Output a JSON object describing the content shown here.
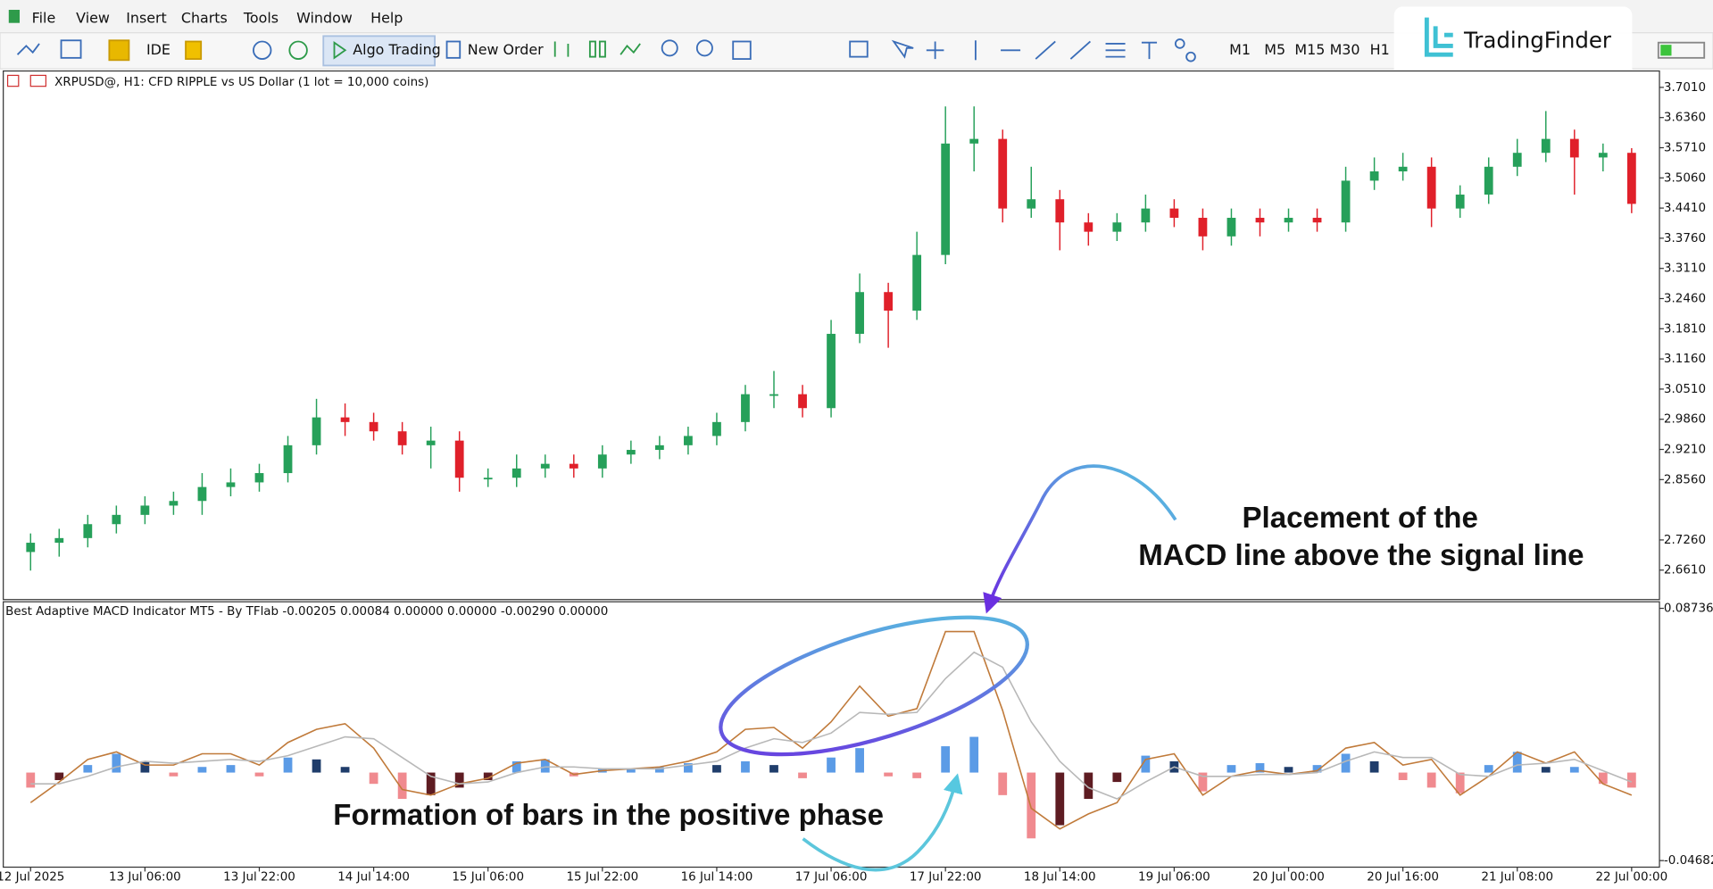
{
  "menu": [
    "File",
    "View",
    "Insert",
    "Charts",
    "Tools",
    "Window",
    "Help"
  ],
  "toolbar": {
    "ide": "IDE",
    "algo_trading": "Algo Trading",
    "new_order": "New Order",
    "timeframes": [
      "M1",
      "M5",
      "M15",
      "M30",
      "H1"
    ]
  },
  "logo": "TradingFinder",
  "annotations": [
    "Placement of the",
    "MACD line above the signal line",
    "Formation of bars in the positive phase"
  ],
  "chart_data": [
    {
      "type": "candlestick",
      "title": "XRPUSD@, H1:  CFD RIPPLE vs US Dollar (1 lot = 10,000 coins)",
      "up_color": "#26a05a",
      "down_color": "#e0202a",
      "open": [
        2.7,
        2.72,
        2.73,
        2.76,
        2.78,
        2.8,
        2.81,
        2.84,
        2.85,
        2.87,
        2.93,
        2.99,
        2.98,
        2.96,
        2.93,
        2.94,
        2.86,
        2.86,
        2.88,
        2.89,
        2.88,
        2.91,
        2.92,
        2.93,
        2.95,
        2.98,
        3.04,
        3.04,
        3.01,
        3.17,
        3.26,
        3.22,
        3.34,
        3.58,
        3.59,
        3.44,
        3.46,
        3.41,
        3.39,
        3.41,
        3.44,
        3.42,
        3.38,
        3.42,
        3.41,
        3.42,
        3.41,
        3.5,
        3.52,
        3.53,
        3.44,
        3.47,
        3.53,
        3.56,
        3.59,
        3.55,
        3.56
      ],
      "high": [
        2.74,
        2.75,
        2.78,
        2.8,
        2.82,
        2.83,
        2.87,
        2.88,
        2.89,
        2.95,
        3.03,
        3.02,
        3.0,
        2.98,
        2.97,
        2.96,
        2.88,
        2.91,
        2.91,
        2.91,
        2.93,
        2.94,
        2.95,
        2.97,
        3.0,
        3.06,
        3.09,
        3.06,
        3.2,
        3.3,
        3.28,
        3.39,
        3.66,
        3.66,
        3.61,
        3.53,
        3.48,
        3.43,
        3.43,
        3.47,
        3.46,
        3.44,
        3.44,
        3.44,
        3.44,
        3.44,
        3.53,
        3.55,
        3.56,
        3.55,
        3.49,
        3.55,
        3.59,
        3.65,
        3.61,
        3.58,
        3.57
      ],
      "low": [
        2.66,
        2.69,
        2.71,
        2.74,
        2.76,
        2.78,
        2.78,
        2.82,
        2.83,
        2.85,
        2.91,
        2.95,
        2.94,
        2.91,
        2.88,
        2.83,
        2.84,
        2.84,
        2.86,
        2.86,
        2.86,
        2.89,
        2.9,
        2.91,
        2.93,
        2.96,
        3.01,
        2.99,
        2.99,
        3.15,
        3.14,
        3.2,
        3.32,
        3.52,
        3.41,
        3.42,
        3.35,
        3.36,
        3.37,
        3.39,
        3.4,
        3.35,
        3.36,
        3.38,
        3.39,
        3.39,
        3.39,
        3.48,
        3.5,
        3.4,
        3.42,
        3.45,
        3.51,
        3.54,
        3.47,
        3.52,
        3.43
      ],
      "close": [
        2.72,
        2.73,
        2.76,
        2.78,
        2.8,
        2.81,
        2.84,
        2.85,
        2.87,
        2.93,
        2.99,
        2.98,
        2.96,
        2.93,
        2.94,
        2.86,
        2.86,
        2.88,
        2.89,
        2.88,
        2.91,
        2.92,
        2.93,
        2.95,
        2.98,
        3.04,
        3.04,
        3.01,
        3.17,
        3.26,
        3.22,
        3.34,
        3.58,
        3.59,
        3.44,
        3.46,
        3.41,
        3.39,
        3.41,
        3.44,
        3.42,
        3.38,
        3.42,
        3.41,
        3.42,
        3.41,
        3.5,
        3.52,
        3.53,
        3.44,
        3.47,
        3.53,
        3.56,
        3.59,
        3.55,
        3.56,
        3.45
      ],
      "ylim": [
        2.5975,
        3.7363
      ],
      "yticks": [
        {
          "value": 3.701,
          "label": "3.7010"
        },
        {
          "value": 3.636,
          "label": "3.6360"
        },
        {
          "value": 3.571,
          "label": "3.5710"
        },
        {
          "value": 3.506,
          "label": "3.5060"
        },
        {
          "value": 3.441,
          "label": "3.4410"
        },
        {
          "value": 3.376,
          "label": "3.3760"
        },
        {
          "value": 3.311,
          "label": "3.3110"
        },
        {
          "value": 3.246,
          "label": "3.2460"
        },
        {
          "value": 3.181,
          "label": "3.1810"
        },
        {
          "value": 3.116,
          "label": "3.1160"
        },
        {
          "value": 3.051,
          "label": "3.0510"
        },
        {
          "value": 2.986,
          "label": "2.9860"
        },
        {
          "value": 2.921,
          "label": "2.9210"
        },
        {
          "value": 2.856,
          "label": "2.8560"
        },
        {
          "value": 2.726,
          "label": "2.7260"
        },
        {
          "value": 2.661,
          "label": "2.6610"
        }
      ]
    },
    {
      "type": "macd",
      "title": "Best Adaptive MACD Indicator MT5 - By TFlab -0.00205 0.00084 0.00000 0.00000 -0.00290 0.00000",
      "categories": [
        "12 Jul 2025",
        null,
        null,
        null,
        "13 Jul 06:00",
        null,
        null,
        null,
        "13 Jul 22:00",
        null,
        null,
        null,
        "14 Jul 14:00",
        null,
        null,
        null,
        "15 Jul 06:00",
        null,
        null,
        null,
        "15 Jul 22:00",
        null,
        null,
        null,
        "16 Jul 14:00",
        null,
        null,
        null,
        "17 Jul 06:00",
        null,
        null,
        null,
        "17 Jul 22:00",
        null,
        null,
        null,
        "18 Jul 14:00",
        null,
        null,
        null,
        "19 Jul 06:00",
        null,
        null,
        null,
        "20 Jul 00:00",
        null,
        null,
        null,
        "20 Jul 16:00",
        null,
        null,
        null,
        "21 Jul 08:00",
        null,
        null,
        null,
        "22 Jul 00:00"
      ],
      "values": [
        -0.008,
        -0.004,
        0.004,
        0.01,
        0.006,
        -0.002,
        0.003,
        0.004,
        -0.002,
        0.008,
        0.007,
        0.003,
        -0.006,
        -0.014,
        -0.012,
        -0.008,
        -0.004,
        0.006,
        0.007,
        -0.002,
        0.002,
        0.002,
        0.003,
        0.005,
        0.004,
        0.006,
        0.004,
        -0.003,
        0.008,
        0.013,
        -0.002,
        -0.003,
        0.014,
        0.019,
        -0.012,
        -0.035,
        -0.028,
        -0.014,
        -0.005,
        0.009,
        0.006,
        -0.01,
        0.004,
        0.005,
        0.003,
        0.004,
        0.01,
        0.006,
        -0.004,
        -0.008,
        -0.011,
        0.004,
        0.011,
        0.003,
        0.003,
        -0.006,
        -0.008
      ],
      "histogram_colors": [
        "#5b9be6",
        "#1f3d6b",
        "#f08a8f",
        "#5e1c22"
      ],
      "series": [
        {
          "color": "#c07a3a",
          "values": [
            -0.016,
            -0.005,
            0.007,
            0.011,
            0.004,
            0.004,
            0.01,
            0.01,
            0.004,
            0.016,
            0.023,
            0.026,
            0.013,
            -0.009,
            -0.012,
            -0.006,
            -0.003,
            0.005,
            0.007,
            -0.001,
            0.001,
            0.002,
            0.003,
            0.006,
            0.011,
            0.023,
            0.024,
            0.013,
            0.027,
            0.046,
            0.03,
            0.034,
            0.075,
            0.075,
            0.033,
            -0.019,
            -0.03,
            -0.022,
            -0.016,
            0.007,
            0.01,
            -0.012,
            -0.002,
            0.001,
            -0.001,
            0.001,
            0.013,
            0.016,
            0.004,
            0.007,
            -0.012,
            -0.002,
            0.011,
            0.005,
            0.011,
            -0.006,
            -0.012
          ]
        },
        {
          "color": "#b8b8b8",
          "values": [
            -0.006,
            -0.006,
            -0.002,
            0.003,
            0.006,
            0.005,
            0.006,
            0.007,
            0.006,
            0.009,
            0.014,
            0.019,
            0.018,
            0.008,
            -0.002,
            -0.006,
            -0.005,
            0,
            0.003,
            0.003,
            0.002,
            0.002,
            0.002,
            0.004,
            0.006,
            0.013,
            0.018,
            0.016,
            0.021,
            0.032,
            0.031,
            0.032,
            0.05,
            0.064,
            0.056,
            0.027,
            0.006,
            -0.008,
            -0.014,
            -0.005,
            0.003,
            -0.002,
            -0.002,
            -0.001,
            -0.001,
            0,
            0.006,
            0.011,
            0.008,
            0.008,
            -0.001,
            -0.002,
            0.004,
            0.005,
            0.007,
            0.001,
            -0.005
          ]
        }
      ],
      "ylim": [
        -0.05031,
        0.09085
      ],
      "yticks": [
        0.08736,
        -0.04682
      ]
    }
  ]
}
